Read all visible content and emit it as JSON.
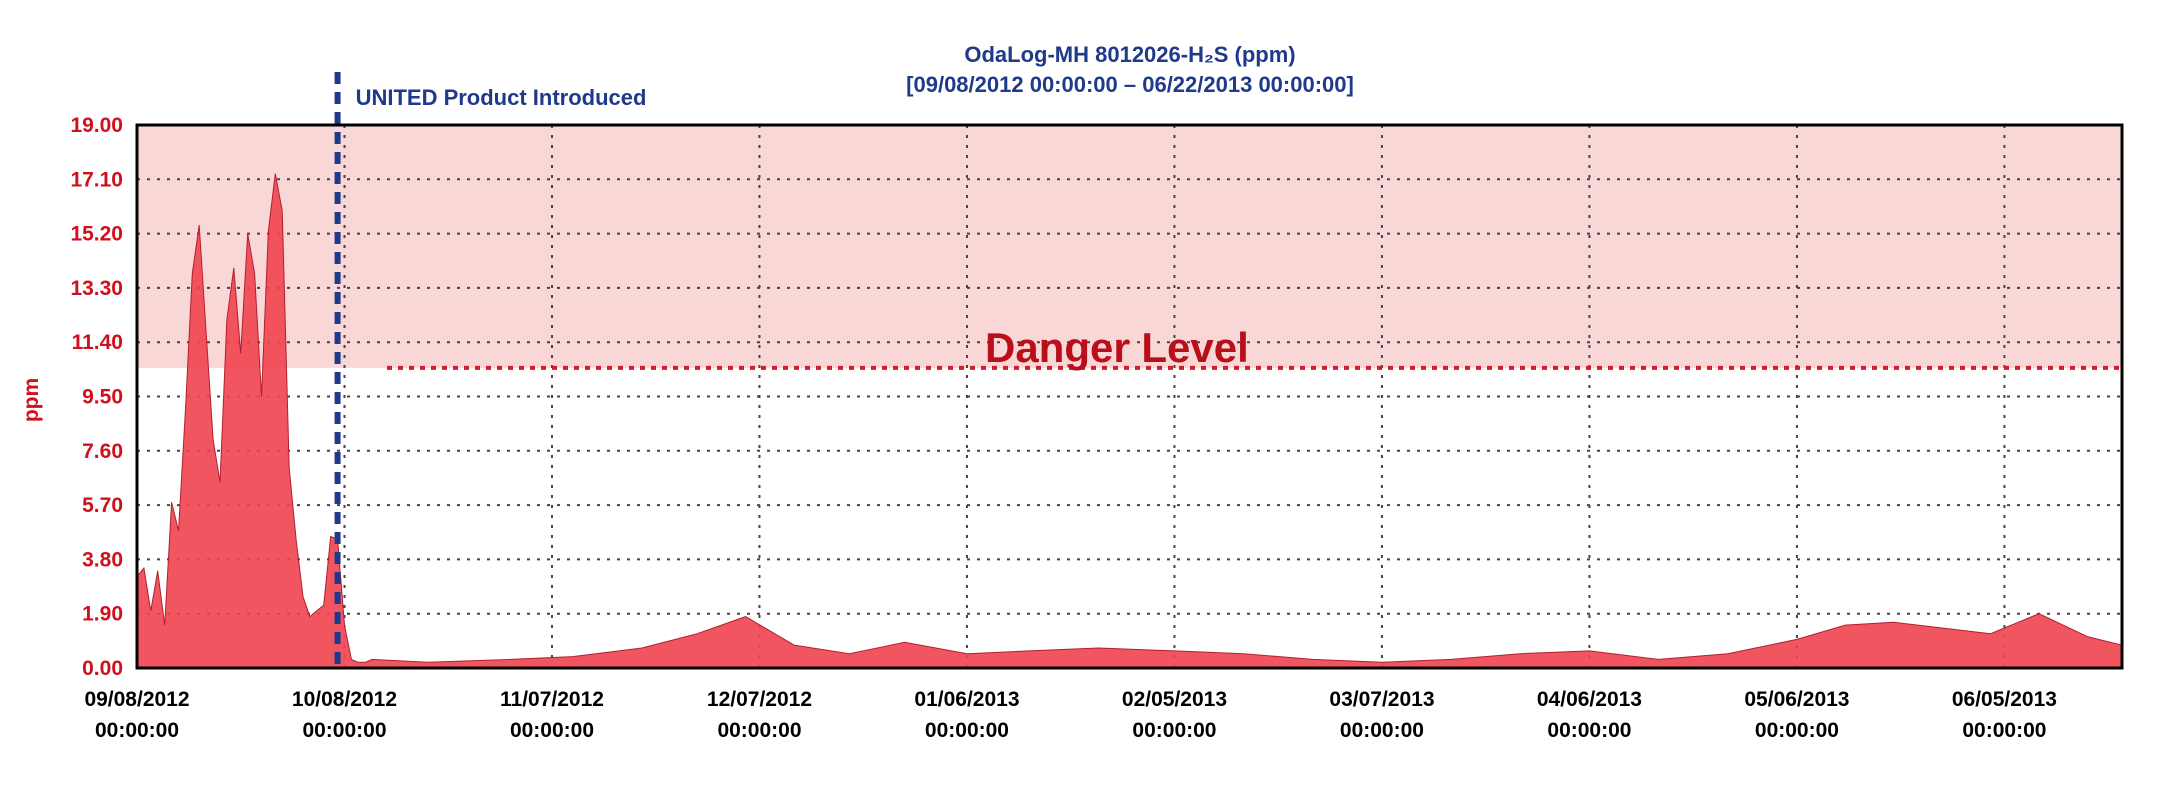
{
  "chart_data": {
    "type": "area",
    "title": "OdaLog-MH 8012026-H₂S (ppm)",
    "subtitle": "[09/08/2012 00:00:00 – 06/22/2013 00:00:00]",
    "xlabel": "",
    "ylabel": "ppm",
    "ylim": [
      0,
      19
    ],
    "xlim": [
      "09/08/2012 00:00:00",
      "06/22/2013 00:00:00"
    ],
    "y_ticks": [
      "0.00",
      "1.90",
      "3.80",
      "5.70",
      "7.60",
      "9.50",
      "11.40",
      "13.30",
      "15.20",
      "17.10",
      "19.00"
    ],
    "x_ticks": [
      {
        "date": "09/08/2012",
        "time": "00:00:00"
      },
      {
        "date": "10/08/2012",
        "time": "00:00:00"
      },
      {
        "date": "11/07/2012",
        "time": "00:00:00"
      },
      {
        "date": "12/07/2012",
        "time": "00:00:00"
      },
      {
        "date": "01/06/2013",
        "time": "00:00:00"
      },
      {
        "date": "02/05/2013",
        "time": "00:00:00"
      },
      {
        "date": "03/07/2013",
        "time": "00:00:00"
      },
      {
        "date": "04/06/2013",
        "time": "00:00:00"
      },
      {
        "date": "05/06/2013",
        "time": "00:00:00"
      },
      {
        "date": "06/05/2013",
        "time": "00:00:00"
      }
    ],
    "grid": true,
    "danger_level": {
      "label": "Danger Level",
      "value": 10.5
    },
    "event_marker": {
      "label": "UNITED Product Introduced",
      "date": "10/07/2012"
    },
    "series": [
      {
        "color": "#f0444f",
        "x": [
          "09/08/2012",
          "09/09/2012",
          "09/10/2012",
          "09/11/2012",
          "09/12/2012",
          "09/13/2012",
          "09/14/2012",
          "09/15/2012",
          "09/16/2012",
          "09/17/2012",
          "09/18/2012",
          "09/19/2012",
          "09/20/2012",
          "09/21/2012",
          "09/22/2012",
          "09/23/2012",
          "09/24/2012",
          "09/25/2012",
          "09/26/2012",
          "09/27/2012",
          "09/28/2012",
          "09/29/2012",
          "09/30/2012",
          "10/01/2012",
          "10/02/2012",
          "10/03/2012",
          "10/04/2012",
          "10/05/2012",
          "10/06/2012",
          "10/07/2012",
          "10/08/2012",
          "10/09/2012",
          "10/10/2012",
          "10/11/2012",
          "10/12/2012",
          "10/20/2012",
          "11/01/2012",
          "11/10/2012",
          "11/20/2012",
          "11/28/2012",
          "12/05/2012",
          "12/12/2012",
          "12/20/2012",
          "12/28/2012",
          "01/06/2013",
          "01/15/2013",
          "01/25/2013",
          "02/05/2013",
          "02/15/2013",
          "02/25/2013",
          "03/07/2013",
          "03/17/2013",
          "03/27/2013",
          "04/06/2013",
          "04/16/2013",
          "04/26/2013",
          "05/06/2013",
          "05/13/2013",
          "05/20/2013",
          "05/27/2013",
          "06/03/2013",
          "06/10/2013",
          "06/17/2013",
          "06/22/2013"
        ],
        "y": [
          3.2,
          3.5,
          2.0,
          3.4,
          1.5,
          5.8,
          4.8,
          9.0,
          13.8,
          15.5,
          11.7,
          8.0,
          6.5,
          12.2,
          14.0,
          11.0,
          15.2,
          13.8,
          9.5,
          15.3,
          17.3,
          16.0,
          7.0,
          4.5,
          2.5,
          1.8,
          2.0,
          2.2,
          4.6,
          4.5,
          1.5,
          0.3,
          0.2,
          0.2,
          0.3,
          0.2,
          0.3,
          0.4,
          0.7,
          1.2,
          1.8,
          0.8,
          0.5,
          0.9,
          0.5,
          0.6,
          0.7,
          0.6,
          0.5,
          0.3,
          0.2,
          0.3,
          0.5,
          0.6,
          0.3,
          0.5,
          1.0,
          1.5,
          1.6,
          1.4,
          1.2,
          1.9,
          1.1,
          0.8
        ]
      }
    ]
  }
}
